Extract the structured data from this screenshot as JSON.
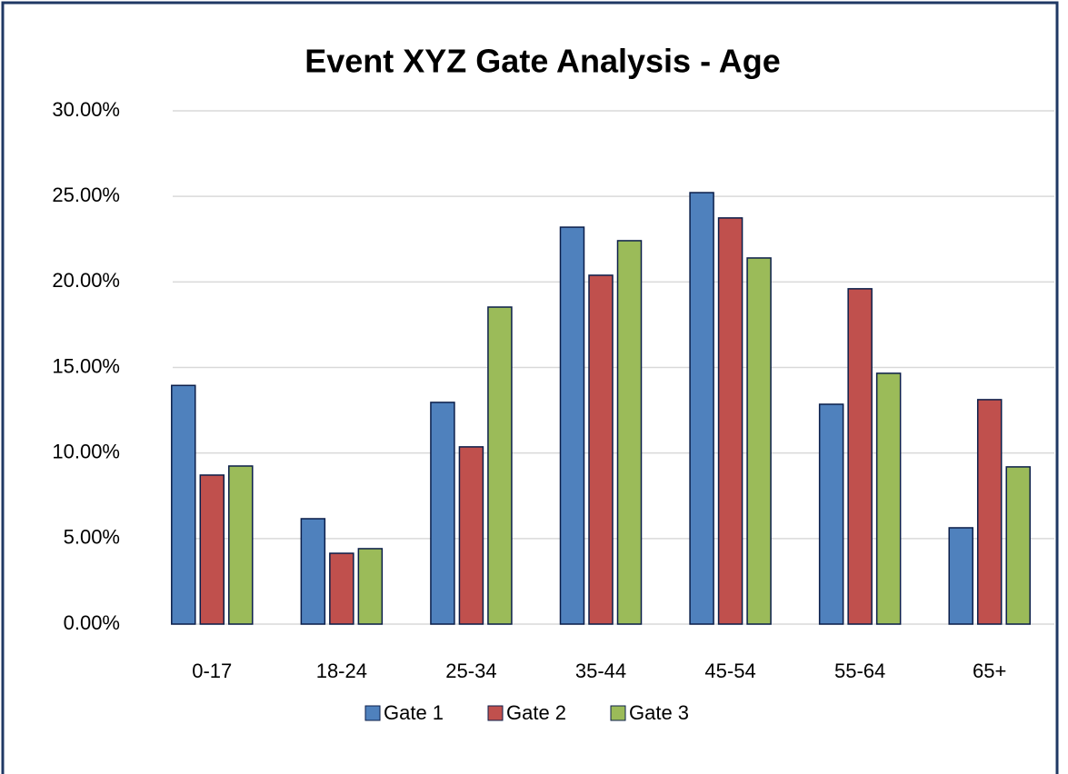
{
  "chart_data": {
    "type": "bar",
    "title": "Event XYZ Gate Analysis - Age",
    "categories": [
      "0-17",
      "18-24",
      "25-34",
      "35-44",
      "45-54",
      "55-64",
      "65+"
    ],
    "series": [
      {
        "name": "Gate 1",
        "color": "#4f81bd",
        "values": [
          13.95,
          6.16,
          12.96,
          23.2,
          25.22,
          12.85,
          5.63
        ]
      },
      {
        "name": "Gate 2",
        "color": "#c0504d",
        "values": [
          8.71,
          4.14,
          10.36,
          20.39,
          23.74,
          19.6,
          13.12
        ]
      },
      {
        "name": "Gate 3",
        "color": "#9bbb59",
        "values": [
          9.24,
          4.41,
          18.53,
          22.41,
          21.4,
          14.66,
          9.19
        ]
      }
    ],
    "ylim": [
      0,
      30
    ],
    "yticks": [
      {
        "value": 0,
        "label": "0.00%"
      },
      {
        "value": 5,
        "label": "5.00%"
      },
      {
        "value": 10,
        "label": "10.00%"
      },
      {
        "value": 15,
        "label": "15.00%"
      },
      {
        "value": 20,
        "label": "20.00%"
      },
      {
        "value": 25,
        "label": "25.00%"
      },
      {
        "value": 30,
        "label": "30.00%"
      }
    ],
    "grid": true,
    "legend": "bottom"
  }
}
